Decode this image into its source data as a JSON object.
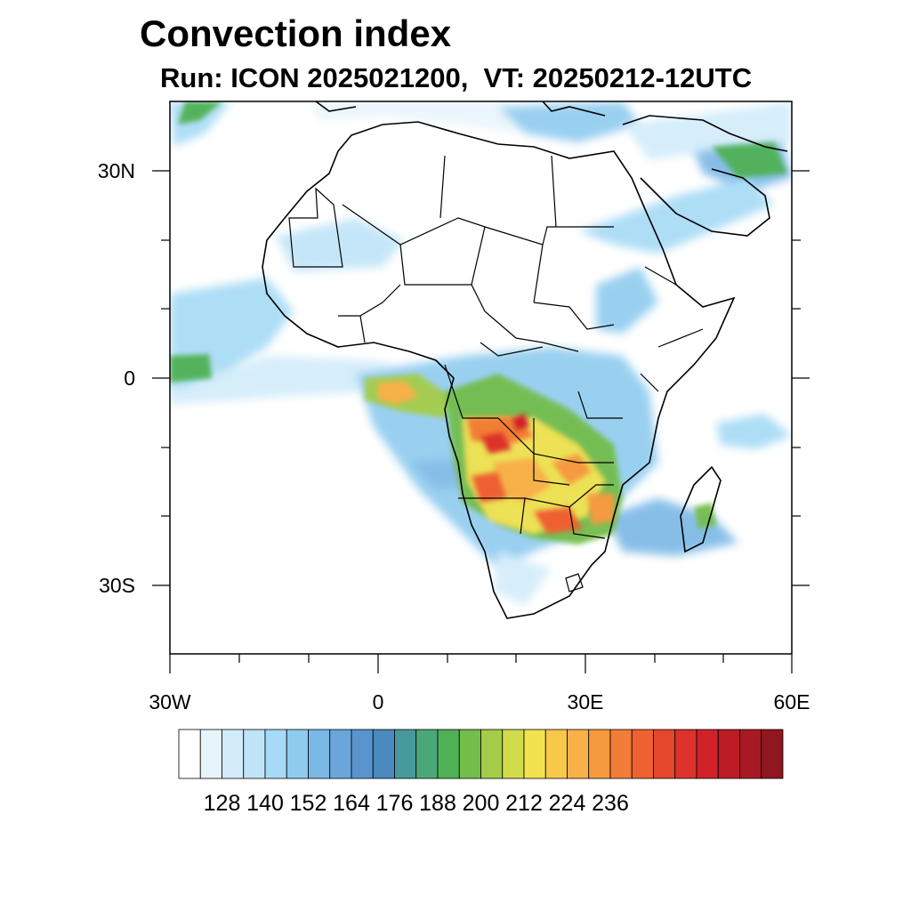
{
  "title": "Convection index",
  "subtitle": "Run: ICON 2025021200,  VT: 20250212-12UTC",
  "map": {
    "lon_range": [
      -30,
      60
    ],
    "lat_range": [
      -40,
      40
    ],
    "lat_labels": [
      "30N",
      "0",
      "30S"
    ],
    "lon_labels": [
      "30W",
      "0",
      "30E",
      "60E"
    ],
    "region": "Africa"
  },
  "colorbar": {
    "labels": [
      "128",
      "140",
      "152",
      "164",
      "176",
      "188",
      "200",
      "212",
      "224",
      "236"
    ],
    "colors": [
      "#ffffff",
      "#e8f4fc",
      "#d2ecfa",
      "#bfe4f8",
      "#a6daf6",
      "#8ecbef",
      "#7ab8e6",
      "#6aa6dc",
      "#5a94cf",
      "#4a8abf",
      "#48999c",
      "#4aa878",
      "#4fb155",
      "#73bd4b",
      "#a5cc48",
      "#d2dc4a",
      "#f2e24e",
      "#f8c84a",
      "#f7b148",
      "#f59a3f",
      "#f27d36",
      "#ee6131",
      "#e5472d",
      "#dd322b",
      "#cf2329",
      "#bd1b26",
      "#a81923",
      "#901620"
    ]
  }
}
